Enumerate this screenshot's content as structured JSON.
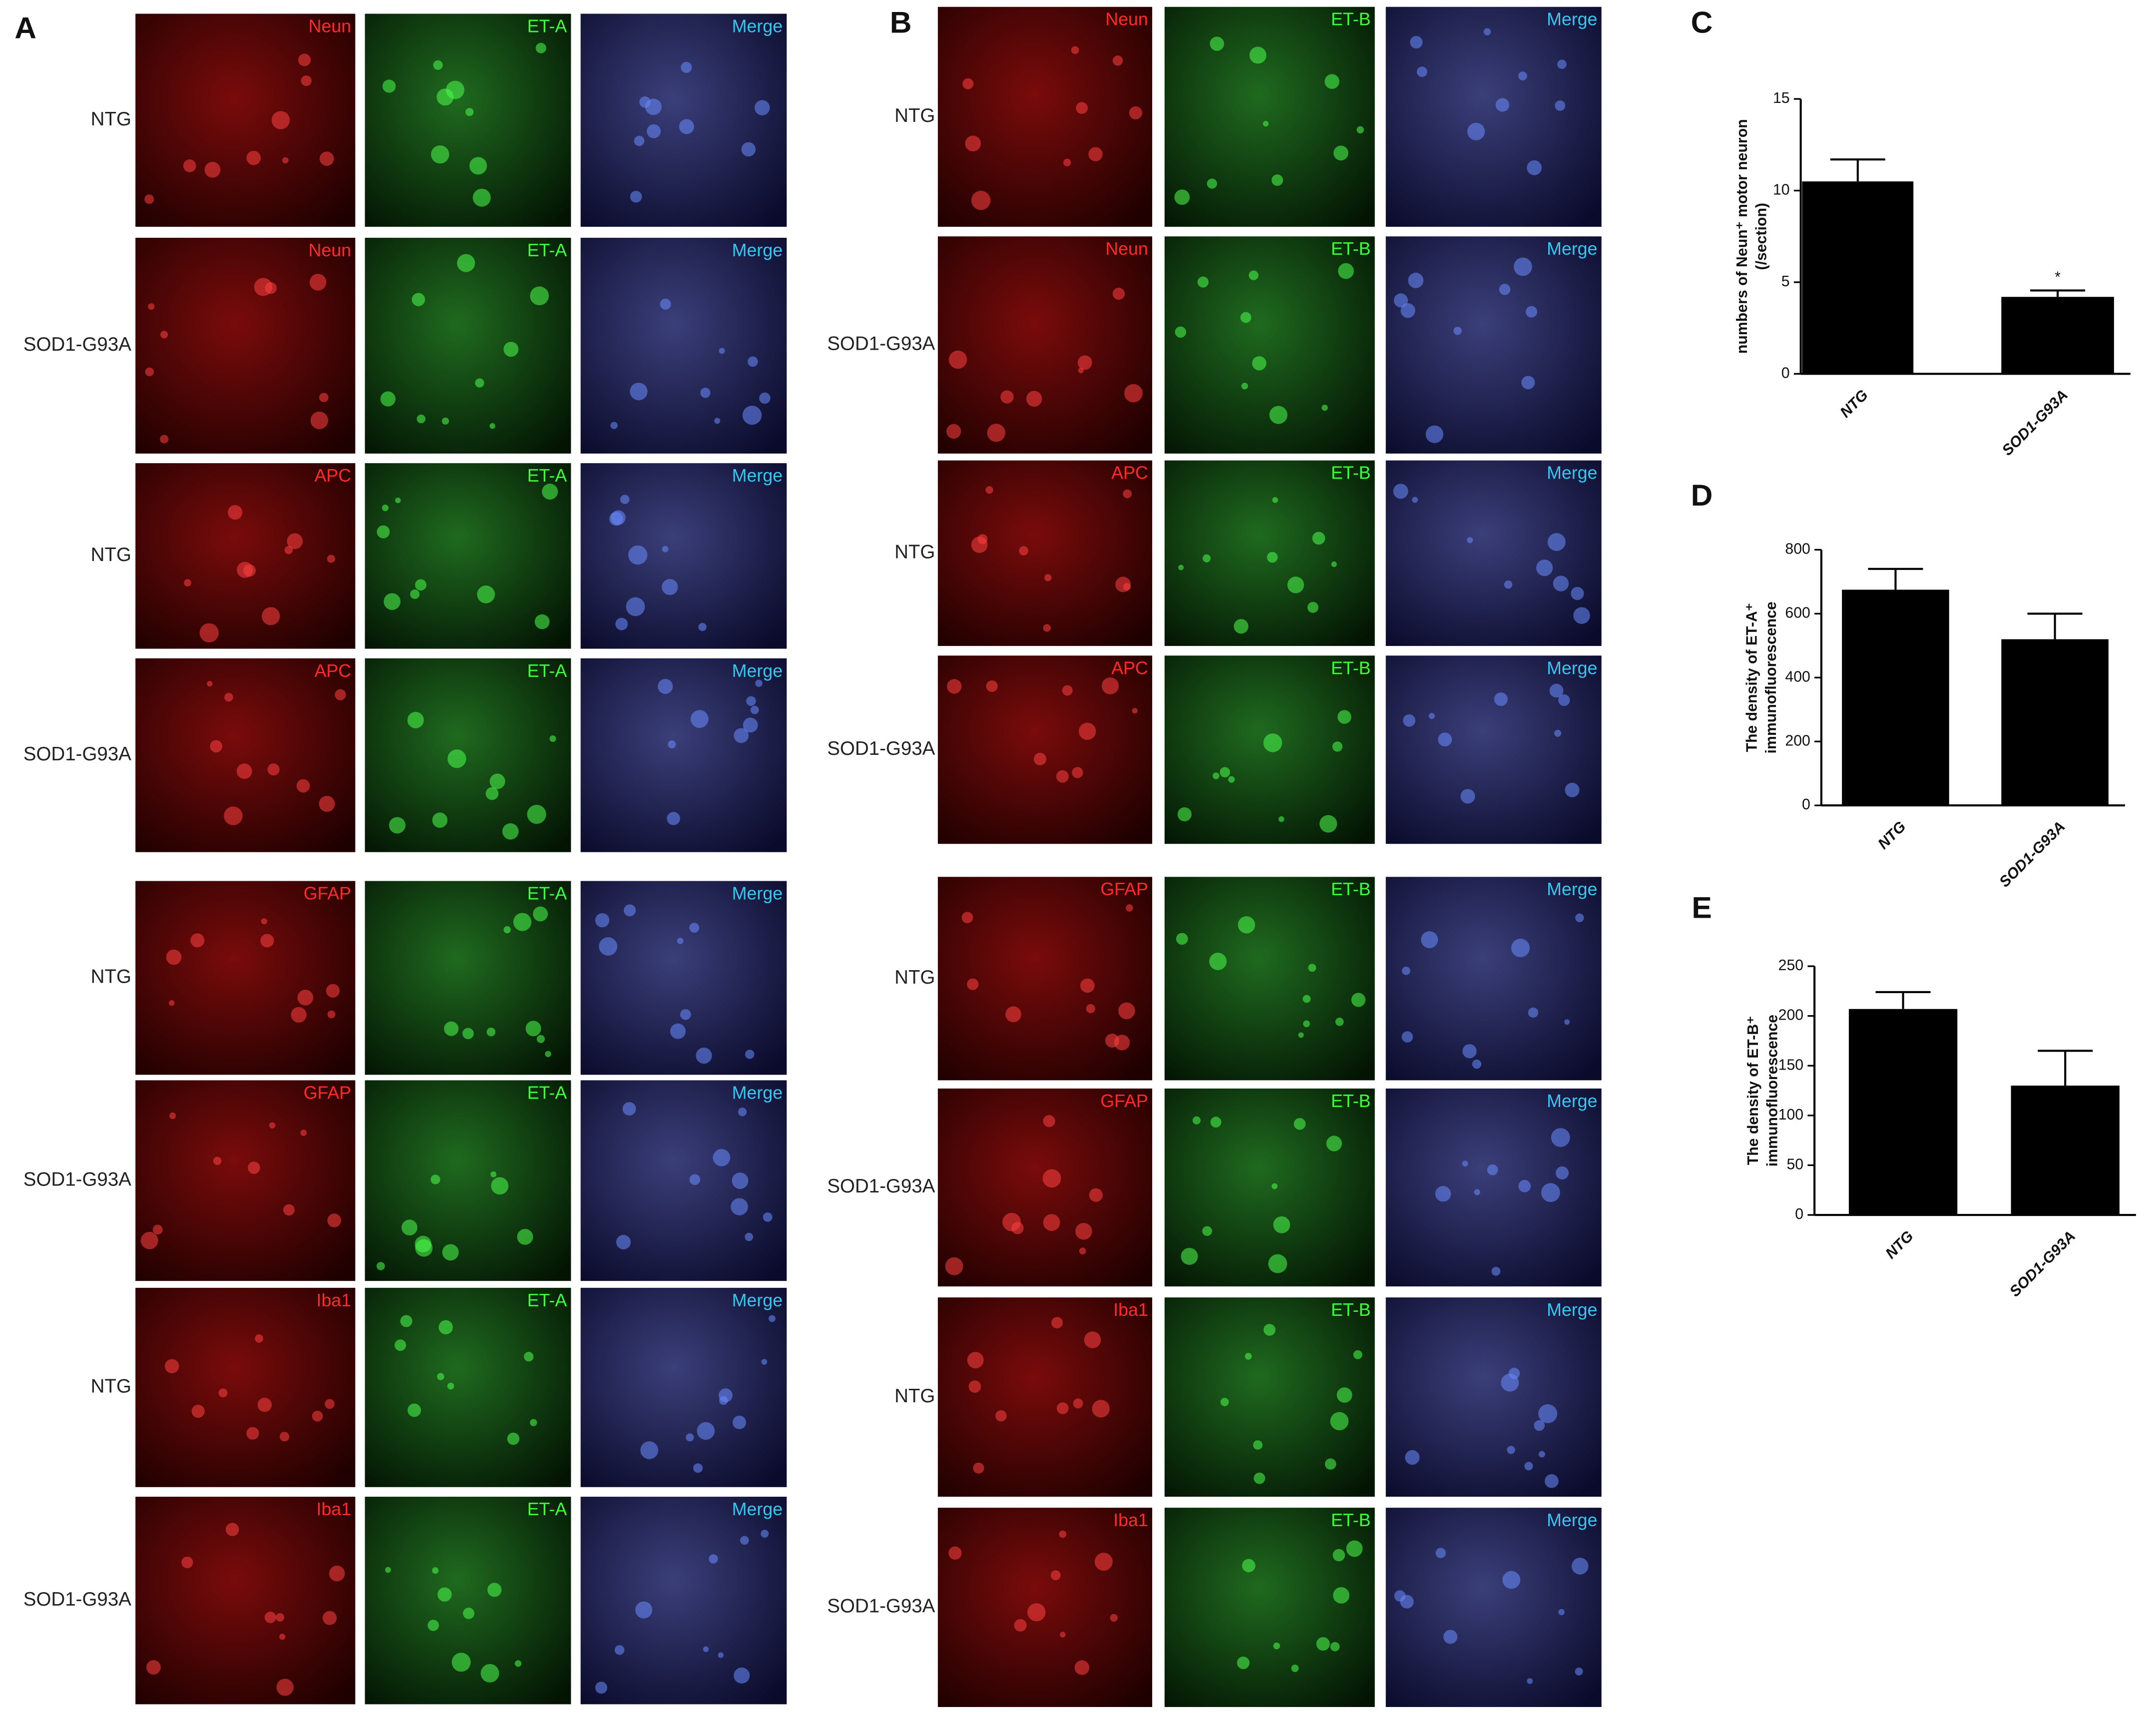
{
  "panels": [
    {
      "label": "A",
      "rows": [
        {
          "group": "NTG",
          "channels": [
            "Neun",
            "ET-A",
            "Merge"
          ]
        },
        {
          "group": "SOD1-G93A",
          "channels": [
            "Neun",
            "ET-A",
            "Merge"
          ]
        },
        {
          "group": "NTG",
          "channels": [
            "APC",
            "ET-A",
            "Merge"
          ]
        },
        {
          "group": "SOD1-G93A",
          "channels": [
            "APC",
            "ET-A",
            "Merge"
          ]
        },
        {
          "group": "NTG",
          "channels": [
            "GFAP",
            "ET-A",
            "Merge"
          ]
        },
        {
          "group": "SOD1-G93A",
          "channels": [
            "GFAP",
            "ET-A",
            "Merge"
          ]
        },
        {
          "group": "NTG",
          "channels": [
            "Iba1",
            "ET-A",
            "Merge"
          ]
        },
        {
          "group": "SOD1-G93A",
          "channels": [
            "Iba1",
            "ET-A",
            "Merge"
          ]
        }
      ]
    },
    {
      "label": "B",
      "rows": [
        {
          "group": "NTG",
          "channels": [
            "Neun",
            "ET-B",
            "Merge"
          ]
        },
        {
          "group": "SOD1-G93A",
          "channels": [
            "Neun",
            "ET-B",
            "Merge"
          ]
        },
        {
          "group": "NTG",
          "channels": [
            "APC",
            "ET-B",
            "Merge"
          ]
        },
        {
          "group": "SOD1-G93A",
          "channels": [
            "APC",
            "ET-B",
            "Merge"
          ]
        },
        {
          "group": "NTG",
          "channels": [
            "GFAP",
            "ET-B",
            "Merge"
          ]
        },
        {
          "group": "SOD1-G93A",
          "channels": [
            "GFAP",
            "ET-B",
            "Merge"
          ]
        },
        {
          "group": "NTG",
          "channels": [
            "Iba1",
            "ET-B",
            "Merge"
          ]
        },
        {
          "group": "SOD1-G93A",
          "channels": [
            "Iba1",
            "ET-B",
            "Merge"
          ]
        }
      ]
    }
  ],
  "chart_data": [
    {
      "type": "bar",
      "panel": "C",
      "ylabel": [
        "numbers of Neun⁺ motor neuron",
        "(/section)"
      ],
      "categories": [
        "NTG",
        "SOD1-G93A"
      ],
      "values": [
        10.5,
        4.2
      ],
      "errors": [
        1.2,
        0.35
      ],
      "significance": [
        null,
        "*"
      ],
      "color": "#000000",
      "ylim": [
        0,
        15
      ],
      "yticks": [
        0,
        5,
        10,
        15
      ]
    },
    {
      "type": "bar",
      "panel": "D",
      "ylabel": [
        "The density of ET-A⁺",
        "immunofluorescence"
      ],
      "categories": [
        "NTG",
        "SOD1-G93A"
      ],
      "values": [
        675,
        520
      ],
      "errors": [
        65,
        80
      ],
      "color": "#000000",
      "ylim": [
        0,
        800
      ],
      "yticks": [
        0,
        200,
        400,
        600,
        800
      ]
    },
    {
      "type": "bar",
      "panel": "E",
      "ylabel": [
        "The density of ET-B⁺",
        "immunofluorescence"
      ],
      "categories": [
        "NTG",
        "SOD1-G93A"
      ],
      "values": [
        207,
        130
      ],
      "errors": [
        17,
        35
      ],
      "color": "#000000",
      "ylim": [
        0,
        250
      ],
      "yticks": [
        0,
        50,
        100,
        150,
        200,
        250
      ]
    }
  ]
}
